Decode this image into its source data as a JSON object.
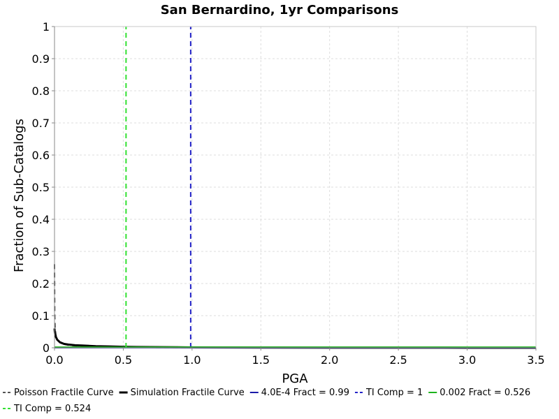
{
  "chart_data": {
    "type": "line",
    "title": "San Bernardino, 1yr Comparisons",
    "xlabel": "PGA",
    "ylabel": "Fraction of Sub-Catalogs",
    "xlim": [
      0,
      3.5
    ],
    "ylim": [
      0,
      1
    ],
    "x_ticks": [
      {
        "value": 0.0,
        "label": "0.0"
      },
      {
        "value": 0.5,
        "label": "0.5"
      },
      {
        "value": 1.0,
        "label": "1.0"
      },
      {
        "value": 1.5,
        "label": "1.5"
      },
      {
        "value": 2.0,
        "label": "2.0"
      },
      {
        "value": 2.5,
        "label": "2.5"
      },
      {
        "value": 3.0,
        "label": "3.0"
      },
      {
        "value": 3.5,
        "label": "3.5"
      }
    ],
    "y_ticks": [
      {
        "value": 0,
        "label": "0"
      },
      {
        "value": 0.1,
        "label": "0.1"
      },
      {
        "value": 0.2,
        "label": "0.2"
      },
      {
        "value": 0.3,
        "label": "0.3"
      },
      {
        "value": 0.4,
        "label": "0.4"
      },
      {
        "value": 0.5,
        "label": "0.5"
      },
      {
        "value": 0.6,
        "label": "0.6"
      },
      {
        "value": 0.7,
        "label": "0.7"
      },
      {
        "value": 0.8,
        "label": "0.8"
      },
      {
        "value": 0.9,
        "label": "0.9"
      },
      {
        "value": 1,
        "label": "1"
      }
    ],
    "grid": true,
    "legend_position": "bottom",
    "series": [
      {
        "name": "Poisson Fractile Curve",
        "color": "#555555",
        "style": "dashed",
        "width": 2,
        "x": [
          0,
          0.002,
          0.005,
          0.01,
          0.02,
          0.04,
          0.07,
          0.1,
          0.2,
          0.3,
          0.5,
          0.7,
          1.0,
          1.2,
          1.5,
          2.0,
          2.5,
          3.0,
          3.5
        ],
        "y": [
          0.26,
          0.1,
          0.06,
          0.04,
          0.026,
          0.016,
          0.011,
          0.008,
          0.005,
          0.003,
          0.0015,
          0.001,
          0.0005,
          0.0003,
          0.0002,
          0.0001,
          5e-05,
          2e-05,
          1e-05
        ]
      },
      {
        "name": "Simulation Fractile Curve",
        "color": "#000000",
        "style": "solid",
        "width": 3,
        "x": [
          0,
          0.002,
          0.005,
          0.01,
          0.02,
          0.04,
          0.07,
          0.1,
          0.15,
          0.2,
          0.3,
          0.4,
          0.5,
          0.6,
          0.8,
          1.0,
          1.2,
          1.5,
          2.0,
          2.5,
          3.0,
          3.5
        ],
        "y": [
          0.06,
          0.05,
          0.042,
          0.034,
          0.025,
          0.017,
          0.012,
          0.01,
          0.008,
          0.007,
          0.005,
          0.004,
          0.003,
          0.0025,
          0.0018,
          0.0012,
          0.0008,
          0.0005,
          0.0003,
          0.0002,
          0.0001,
          5e-05
        ]
      },
      {
        "name": "4.0E-4 Fract = 0.99",
        "color": "#1a1aa8",
        "style": "solid",
        "width": 2,
        "x": [
          0,
          3.5
        ],
        "y": [
          0.0004,
          0.0004
        ]
      },
      {
        "name": "TI Comp = 1",
        "color": "#2424c8",
        "style": "dashed",
        "width": 2,
        "x": [
          0.99,
          0.99
        ],
        "y": [
          0,
          1
        ]
      },
      {
        "name": "0.002 Fract = 0.526",
        "color": "#1db31d",
        "style": "solid",
        "width": 2,
        "x": [
          0,
          3.5
        ],
        "y": [
          0.002,
          0.002
        ]
      },
      {
        "name": "TI Comp = 0.524",
        "color": "#33e033",
        "style": "dashed",
        "width": 2,
        "x": [
          0.52,
          0.52
        ],
        "y": [
          0,
          1
        ]
      }
    ]
  }
}
